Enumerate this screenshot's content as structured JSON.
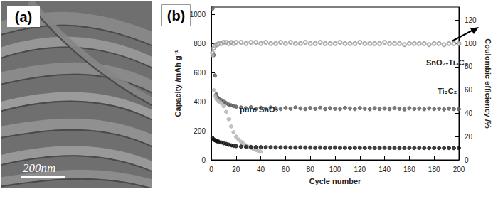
{
  "image": {
    "label": "(a)",
    "scale_bar": "200nm"
  },
  "chart_data": {
    "type": "scatter",
    "panel_label": "(b)",
    "x_label": "Cycle number",
    "y_label": "Capacity /mAh g⁻¹",
    "y2_label": "Coulombic efficiency /%",
    "xlim": [
      0,
      200
    ],
    "xticks": [
      0,
      20,
      40,
      60,
      80,
      100,
      120,
      140,
      160,
      180,
      200
    ],
    "ylim": [
      0,
      1050
    ],
    "yticks": [
      0,
      200,
      400,
      600,
      800,
      1000
    ],
    "y2lim": [
      0,
      131.25
    ],
    "y2ticks": [
      0,
      20,
      40,
      60,
      80,
      100,
      120
    ],
    "grid": false,
    "series": [
      {
        "name": "SnO₂-Ti₃C₂",
        "color": "#5a5a5a",
        "marker": "circle",
        "x": [
          1,
          2,
          3,
          4,
          5,
          6,
          8,
          10,
          12,
          14,
          16,
          18,
          20,
          24,
          28,
          32,
          36,
          40,
          44,
          48,
          52,
          56,
          60,
          64,
          68,
          72,
          76,
          80,
          84,
          88,
          92,
          96,
          100,
          104,
          108,
          112,
          116,
          120,
          124,
          128,
          132,
          136,
          140,
          144,
          148,
          152,
          156,
          160,
          164,
          168,
          172,
          176,
          180,
          184,
          188,
          192,
          196,
          200
        ],
        "values": [
          1040,
          720,
          580,
          450,
          430,
          420,
          410,
          400,
          390,
          380,
          375,
          370,
          365,
          360,
          355,
          362,
          350,
          358,
          352,
          360,
          355,
          350,
          357,
          352,
          360,
          354,
          350,
          356,
          352,
          358,
          350,
          355,
          352,
          350,
          357,
          353,
          350,
          356,
          352,
          349,
          355,
          351,
          354,
          350,
          356,
          352,
          348,
          355,
          351,
          353,
          349,
          354,
          350,
          352,
          348,
          353,
          350,
          349
        ]
      },
      {
        "name": "pure SnO₂",
        "color": "#b4b4b4",
        "marker": "circle",
        "x": [
          1,
          2,
          3,
          4,
          5,
          6,
          8,
          10,
          12,
          14,
          16,
          18,
          20,
          22,
          24,
          26,
          28,
          30,
          32,
          34,
          36,
          38,
          40
        ],
        "values": [
          720,
          480,
          440,
          420,
          410,
          400,
          390,
          370,
          330,
          280,
          230,
          190,
          160,
          140,
          125,
          112,
          100,
          90,
          82,
          75,
          68,
          62,
          57
        ]
      },
      {
        "name": "Ti₃C₂",
        "color": "#111111",
        "marker": "circle",
        "x": [
          1,
          2,
          3,
          4,
          5,
          6,
          8,
          10,
          12,
          14,
          16,
          18,
          20,
          24,
          28,
          32,
          36,
          40,
          44,
          48,
          52,
          56,
          60,
          64,
          68,
          72,
          76,
          80,
          84,
          88,
          92,
          96,
          100,
          104,
          108,
          112,
          116,
          120,
          124,
          128,
          132,
          136,
          140,
          144,
          148,
          152,
          156,
          160,
          164,
          168,
          172,
          176,
          180,
          184,
          188,
          192,
          196,
          200
        ],
        "values": [
          150,
          140,
          135,
          130,
          128,
          125,
          120,
          115,
          110,
          105,
          100,
          97,
          95,
          92,
          90,
          89,
          88,
          88,
          87,
          87,
          86,
          86,
          86,
          85,
          85,
          86,
          85,
          85,
          84,
          85,
          84,
          84,
          85,
          84,
          84,
          83,
          84,
          84,
          83,
          84,
          83,
          83,
          84,
          83,
          83,
          82,
          83,
          83,
          82,
          83,
          82,
          82,
          83,
          82,
          82,
          82,
          81,
          82
        ]
      },
      {
        "color": "#9a9a9a",
        "marker": "open_circle",
        "axis": "y2",
        "x": [
          1,
          2,
          3,
          4,
          5,
          6,
          8,
          10,
          12,
          14,
          16,
          18,
          20,
          24,
          28,
          32,
          36,
          40,
          44,
          48,
          52,
          56,
          60,
          64,
          68,
          72,
          76,
          80,
          84,
          88,
          92,
          96,
          100,
          104,
          108,
          112,
          116,
          120,
          124,
          128,
          132,
          136,
          140,
          144,
          148,
          152,
          156,
          160,
          164,
          168,
          172,
          176,
          180,
          184,
          188,
          192,
          196,
          200
        ],
        "values": [
          92,
          96,
          98,
          99,
          99,
          100,
          100,
          101,
          101,
          100,
          101,
          100,
          101,
          101,
          100,
          101,
          101,
          100,
          101,
          100,
          100,
          101,
          100,
          101,
          100,
          100,
          101,
          100,
          100,
          101,
          100,
          100,
          100,
          101,
          100,
          100,
          100,
          101,
          100,
          100,
          100,
          100,
          101,
          100,
          100,
          100,
          99,
          100,
          100,
          100,
          100,
          99,
          100,
          100,
          99,
          100,
          100,
          100
        ]
      }
    ]
  }
}
